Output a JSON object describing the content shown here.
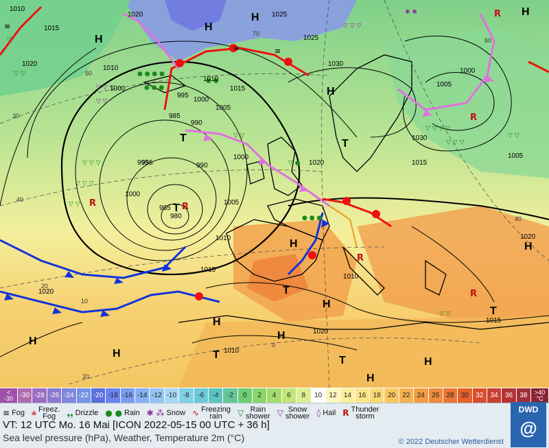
{
  "map": {
    "isobar_labels": [
      "1010",
      "1020",
      "1015",
      "1020",
      "1025",
      "1030",
      "1025",
      "1020",
      "1015",
      "1010",
      "1005",
      "1000",
      "995",
      "990",
      "985",
      "980",
      "1000",
      "1005",
      "1010",
      "1015",
      "1020",
      "1030",
      "1005",
      "1000",
      "995",
      "1000",
      "1010",
      "1015",
      "1020",
      "1005",
      "1010",
      "1000",
      "995",
      "990",
      "985",
      "1020",
      "1010",
      "1015"
    ],
    "pressure_centers": [
      {
        "label": "H"
      },
      {
        "label": "H"
      },
      {
        "label": "H"
      },
      {
        "label": "H"
      },
      {
        "label": "T"
      },
      {
        "label": "T"
      },
      {
        "label": "T"
      },
      {
        "label": "H"
      },
      {
        "label": "H"
      },
      {
        "label": "T"
      },
      {
        "label": "H"
      },
      {
        "label": "H"
      },
      {
        "label": "T"
      },
      {
        "label": "H"
      },
      {
        "label": "H"
      },
      {
        "label": "H"
      },
      {
        "label": "T"
      },
      {
        "label": "H"
      },
      {
        "label": "H"
      },
      {
        "label": "T"
      },
      {
        "label": "H"
      }
    ],
    "isotherm_labels": [
      "50",
      "40",
      "30",
      "20",
      "10",
      "0",
      "20",
      "40",
      "60",
      "70"
    ]
  },
  "temperature_scale": {
    "low_end": [
      "<",
      "-30"
    ],
    "high_end": [
      ">40",
      "°C"
    ],
    "values": [
      "-30",
      "-28",
      "-26",
      "-24",
      "-22",
      "-20",
      "-18",
      "-16",
      "-14",
      "-12",
      "-10",
      "-8",
      "-6",
      "-4",
      "-2",
      "0",
      "2",
      "4",
      "6",
      "8",
      "10",
      "12",
      "14",
      "16",
      "18",
      "20",
      "22",
      "24",
      "26",
      "28",
      "30",
      "32",
      "34",
      "36",
      "38"
    ],
    "colors": [
      "#b06ab0",
      "#9b6ec4",
      "#8c78d0",
      "#7f86dc",
      "#7294e4",
      "#5a6fe0",
      "#6a84ec",
      "#7a9cf0",
      "#86b0f4",
      "#95c4f4",
      "#a6d8f6",
      "#80d0e8",
      "#6ccad6",
      "#5cc4c0",
      "#66c79a",
      "#70cc74",
      "#8ad46a",
      "#a4dc6e",
      "#c2e47a",
      "#dcee92",
      "#ffffff",
      "#fff7c0",
      "#fdeea0",
      "#fbe58a",
      "#fad873",
      "#f8c860",
      "#f6b24e",
      "#f39c44",
      "#f08a3c",
      "#ec7634",
      "#e6602c",
      "#d84e2c",
      "#c84030",
      "#b43434",
      "#a03038"
    ]
  },
  "legend": {
    "fog": "Fog",
    "freezing_fog": [
      "Freez.",
      "Fog"
    ],
    "drizzle": "Drizzle",
    "rain": "Rain",
    "snow": "Snow",
    "freezing_rain": [
      "Freezing",
      "rain"
    ],
    "rain_shower": [
      "Rain",
      "shower"
    ],
    "snow_shower": [
      "Snow",
      "shower"
    ],
    "hail": "Hail",
    "thunderstorm": [
      "Thunder",
      "storm"
    ]
  },
  "info": {
    "valid_time": "VT: 12 UTC Mo.  16 Mai [ICON 2022-05-15  00 UTC + 36 h]",
    "subtitle": "Sea level pressure (hPa), Weather, Temperature 2m (°C)",
    "copyright": "© 2022 Deutscher Wetterdienst",
    "logo_text": "DWD"
  },
  "colors": {
    "warm_front": "#ee1111",
    "cold_front": "#1133dd",
    "occluded_front": "#e070e0",
    "isobar": "#000000",
    "rain_symbol": "#1a8a1a",
    "snow_symbol": "#8a2a9a",
    "thunder_symbol": "#c01010"
  }
}
